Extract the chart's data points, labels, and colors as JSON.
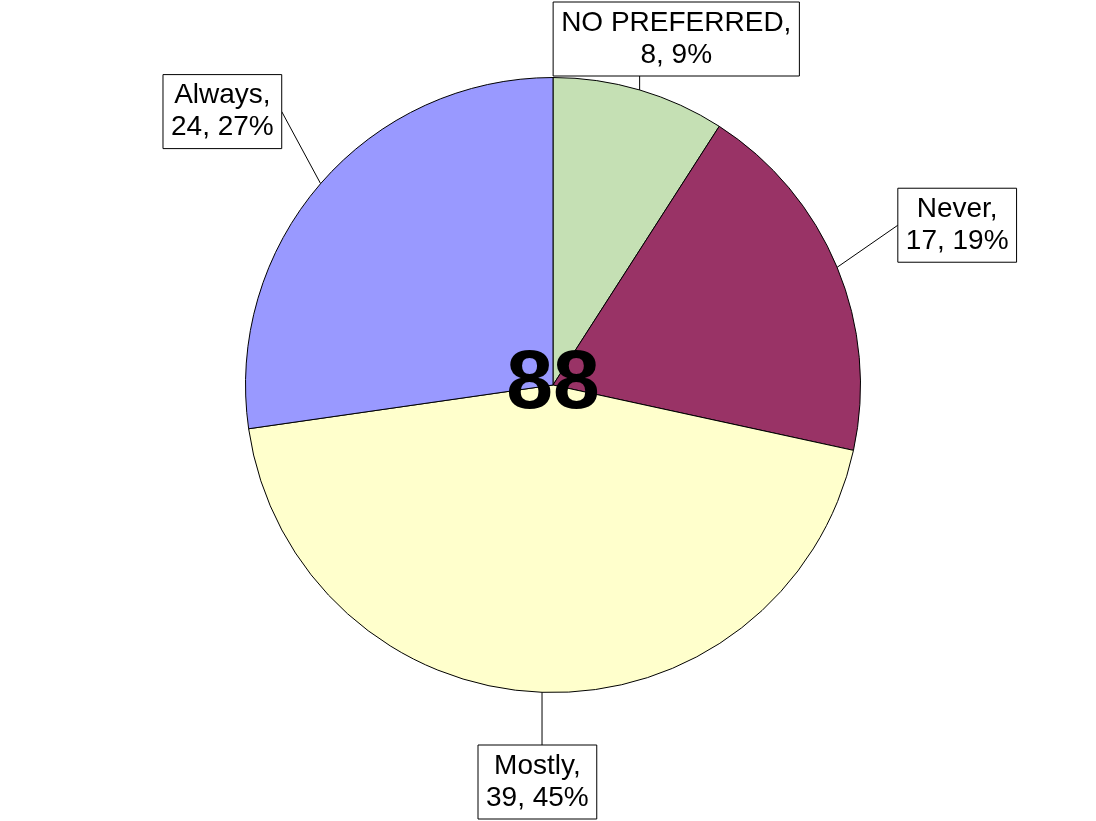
{
  "chart_data": {
    "type": "pie",
    "categories": [
      "NO PREFERRED",
      "Never",
      "Mostly",
      "Always"
    ],
    "values": [
      8,
      17,
      39,
      24
    ],
    "colors": [
      "#c5e0b4",
      "#993366",
      "#ffffcc",
      "#9999ff"
    ],
    "value_labels": [
      ", 8, 9%",
      ", 17, 19%",
      ", 39, 45%",
      ", 24, 27%"
    ],
    "annotations": [
      "88"
    ],
    "legend": false
  }
}
